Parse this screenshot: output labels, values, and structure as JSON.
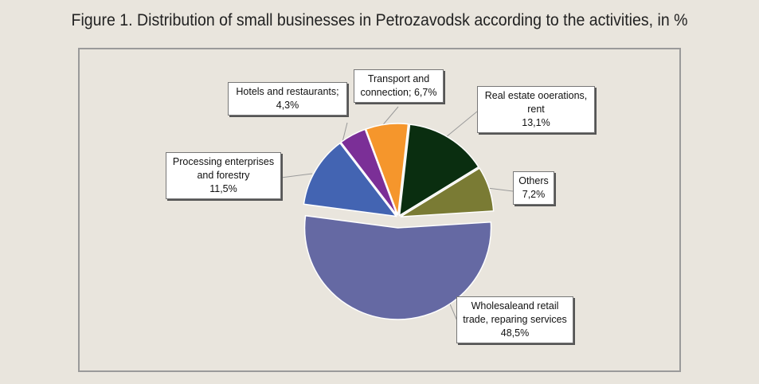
{
  "title": "Figure 1. Distribution of small businesses in Petrozavodsk according to the activities, in %",
  "chart_data": {
    "type": "pie",
    "slices": [
      {
        "label_lines": [
          "Wholesaleand retail",
          "trade, reparing services"
        ],
        "pct_text": "48,5%",
        "value": 48.5,
        "color": "#6569a3",
        "exploded": true
      },
      {
        "label_lines": [
          "Processing enterprises",
          "and forestry"
        ],
        "pct_text": "11,5%",
        "value": 11.5,
        "color": "#4364b2",
        "exploded": false
      },
      {
        "label_lines": [
          "Hotels and restaurants;"
        ],
        "pct_text": "4,3%",
        "value": 4.3,
        "color": "#7b2f97",
        "exploded": false
      },
      {
        "label_lines": [
          "Transport and",
          "connection;"
        ],
        "pct_text": "6,7%",
        "value": 6.7,
        "color": "#f5962c",
        "exploded": false
      },
      {
        "label_lines": [
          "Real estate ooerations,",
          "rent"
        ],
        "pct_text": "13,1%",
        "value": 13.1,
        "color": "#0a2e10",
        "exploded": false
      },
      {
        "label_lines": [
          "Others"
        ],
        "pct_text": "7,2%",
        "value": 7.2,
        "color": "#7a7b34",
        "exploded": false
      }
    ]
  }
}
